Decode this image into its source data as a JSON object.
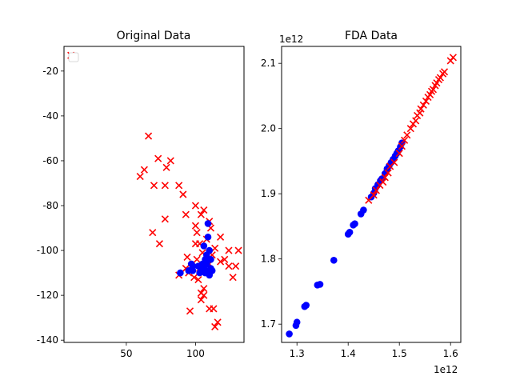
{
  "chart_data": [
    {
      "type": "scatter",
      "title": "Original Data",
      "xlabel": "",
      "ylabel": "",
      "xlim": [
        5,
        135
      ],
      "ylim": [
        -141,
        -9
      ],
      "x_ticks": [
        50,
        100
      ],
      "y_ticks": [
        -20,
        -40,
        -60,
        -80,
        -100,
        -120,
        -140
      ],
      "legend": "upper-left (empty)",
      "grid": false,
      "series": [
        {
          "marker": "x",
          "color": "#ff0000",
          "points": [
            [
              10,
              -13
            ],
            [
              66,
              -49
            ],
            [
              73,
              -59
            ],
            [
              79,
              -63
            ],
            [
              82,
              -60
            ],
            [
              63,
              -64
            ],
            [
              60,
              -67
            ],
            [
              70,
              -71
            ],
            [
              78,
              -71
            ],
            [
              88,
              -71
            ],
            [
              91,
              -75
            ],
            [
              100,
              -80
            ],
            [
              106,
              -82
            ],
            [
              93,
              -84
            ],
            [
              104,
              -84
            ],
            [
              110,
              -87
            ],
            [
              78,
              -86
            ],
            [
              100,
              -89
            ],
            [
              111,
              -90
            ],
            [
              69,
              -92
            ],
            [
              101,
              -92
            ],
            [
              108,
              -95
            ],
            [
              118,
              -94
            ],
            [
              74,
              -97
            ],
            [
              100,
              -97
            ],
            [
              103,
              -97
            ],
            [
              114,
              -99
            ],
            [
              124,
              -100
            ],
            [
              131,
              -100
            ],
            [
              105,
              -101
            ],
            [
              112,
              -102
            ],
            [
              94,
              -103
            ],
            [
              101,
              -104
            ],
            [
              118,
              -105
            ],
            [
              121,
              -104
            ],
            [
              110,
              -106
            ],
            [
              97,
              -107
            ],
            [
              124,
              -107
            ],
            [
              129,
              -107
            ],
            [
              93,
              -108
            ],
            [
              103,
              -108
            ],
            [
              88,
              -111
            ],
            [
              99,
              -112
            ],
            [
              127,
              -112
            ],
            [
              102,
              -113
            ],
            [
              95,
              -110
            ],
            [
              106,
              -117
            ],
            [
              104,
              -119
            ],
            [
              106,
              -120
            ],
            [
              104,
              -122
            ],
            [
              113,
              -126
            ],
            [
              110,
              -126
            ],
            [
              96,
              -127
            ],
            [
              116,
              -132
            ],
            [
              114,
              -134
            ]
          ]
        },
        {
          "marker": "o",
          "color": "#0000ff",
          "points": [
            [
              109,
              -88
            ],
            [
              109,
              -94
            ],
            [
              106,
              -98
            ],
            [
              110,
              -100
            ],
            [
              108,
              -102
            ],
            [
              107,
              -104
            ],
            [
              111,
              -104
            ],
            [
              105,
              -106
            ],
            [
              108,
              -106
            ],
            [
              97,
              -106
            ],
            [
              98,
              -107
            ],
            [
              102,
              -107
            ],
            [
              111,
              -108
            ],
            [
              106,
              -108
            ],
            [
              108,
              -109
            ],
            [
              112,
              -109
            ],
            [
              104,
              -109
            ],
            [
              95,
              -109
            ],
            [
              89,
              -110
            ],
            [
              98,
              -109
            ],
            [
              107,
              -110
            ],
            [
              103,
              -110
            ],
            [
              110,
              -111
            ]
          ]
        }
      ]
    },
    {
      "type": "scatter",
      "title": "FDA Data",
      "xlabel": "",
      "ylabel": "",
      "x_scale_note": "1e12",
      "y_scale_note": "1e12",
      "xlim": [
        1.27,
        1.62
      ],
      "ylim": [
        1.672,
        2.126
      ],
      "x_ticks": [
        1.3,
        1.4,
        1.5,
        1.6
      ],
      "y_ticks": [
        1.7,
        1.8,
        1.9,
        2.0,
        2.1
      ],
      "grid": false,
      "series": [
        {
          "marker": "o",
          "color": "#0000ff",
          "points": [
            [
              1.285,
              1.685
            ],
            [
              1.298,
              1.698
            ],
            [
              1.3,
              1.703
            ],
            [
              1.315,
              1.727
            ],
            [
              1.318,
              1.729
            ],
            [
              1.34,
              1.76
            ],
            [
              1.345,
              1.761
            ],
            [
              1.372,
              1.798
            ],
            [
              1.4,
              1.838
            ],
            [
              1.403,
              1.841
            ],
            [
              1.41,
              1.852
            ],
            [
              1.413,
              1.854
            ],
            [
              1.425,
              1.869
            ],
            [
              1.43,
              1.875
            ],
            [
              1.445,
              1.895
            ],
            [
              1.45,
              1.901
            ],
            [
              1.453,
              1.908
            ],
            [
              1.458,
              1.914
            ],
            [
              1.463,
              1.92
            ],
            [
              1.466,
              1.923
            ],
            [
              1.472,
              1.931
            ],
            [
              1.476,
              1.938
            ],
            [
              1.48,
              1.943
            ],
            [
              1.484,
              1.948
            ],
            [
              1.488,
              1.953
            ],
            [
              1.492,
              1.958
            ],
            [
              1.495,
              1.962
            ],
            [
              1.498,
              1.966
            ],
            [
              1.502,
              1.972
            ],
            [
              1.505,
              1.978
            ]
          ]
        },
        {
          "marker": "x",
          "color": "#ff0000",
          "points": [
            [
              1.44,
              1.89
            ],
            [
              1.45,
              1.898
            ],
            [
              1.455,
              1.905
            ],
            [
              1.462,
              1.913
            ],
            [
              1.468,
              1.918
            ],
            [
              1.472,
              1.925
            ],
            [
              1.478,
              1.932
            ],
            [
              1.482,
              1.942
            ],
            [
              1.49,
              1.948
            ],
            [
              1.5,
              1.962
            ],
            [
              1.505,
              1.973
            ],
            [
              1.51,
              1.982
            ],
            [
              1.515,
              1.99
            ],
            [
              1.522,
              2.0
            ],
            [
              1.527,
              2.007
            ],
            [
              1.532,
              2.012
            ],
            [
              1.535,
              2.02
            ],
            [
              1.54,
              2.024
            ],
            [
              1.542,
              2.03
            ],
            [
              1.547,
              2.036
            ],
            [
              1.552,
              2.042
            ],
            [
              1.556,
              2.048
            ],
            [
              1.56,
              2.052
            ],
            [
              1.563,
              2.057
            ],
            [
              1.566,
              2.06
            ],
            [
              1.57,
              2.066
            ],
            [
              1.573,
              2.07
            ],
            [
              1.577,
              2.075
            ],
            [
              1.58,
              2.078
            ],
            [
              1.585,
              2.084
            ],
            [
              1.588,
              2.087
            ],
            [
              1.6,
              2.104
            ],
            [
              1.605,
              2.109
            ]
          ]
        }
      ]
    }
  ]
}
